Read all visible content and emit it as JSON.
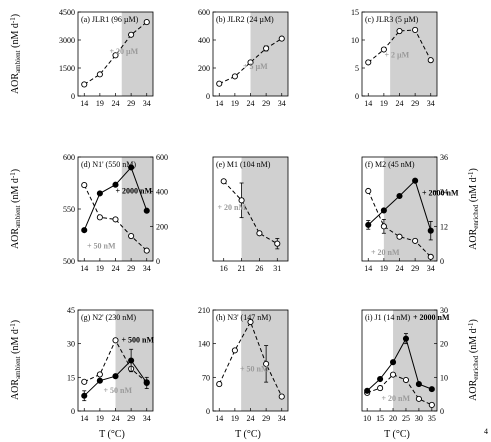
{
  "figure": {
    "x_axis_label": "T (°C)",
    "y_left_label": "AOR",
    "y_left_sub": "ambient",
    "y_right_label": "AOR",
    "y_right_sub": "enriched",
    "y_unit": "(nM d",
    "y_unit_sup": "-1",
    "y_unit_close": ")",
    "corner_mark": "4"
  },
  "colors": {
    "shade": "#d0d0d0",
    "line": "#000000",
    "gray_text": "#9a9a9a",
    "black_text": "#000000"
  },
  "chart_data": [
    {
      "type": "line",
      "title": "(a) JLR1 (96 µM)",
      "xlim": [
        12,
        36
      ],
      "xticks": [
        14,
        19,
        24,
        29,
        34
      ],
      "shade_from": 26,
      "ylim": [
        0,
        4500
      ],
      "yticks": [
        0,
        1500,
        3000,
        4500
      ],
      "series": [
        {
          "axis": "left",
          "style": "dashed",
          "marker": "open",
          "annotation": "+ 20 µM",
          "annotation_color": "#9a9a9a",
          "x": [
            14,
            19,
            24,
            29,
            34
          ],
          "y": [
            620,
            1160,
            2180,
            3280,
            3960
          ],
          "err": [
            0,
            0,
            0,
            0,
            0
          ]
        }
      ]
    },
    {
      "type": "line",
      "title": "(b) JLR2 (24 µM)",
      "xlim": [
        12,
        36
      ],
      "xticks": [
        14,
        19,
        24,
        29,
        34
      ],
      "shade_from": 24,
      "ylim": [
        0,
        600
      ],
      "yticks": [
        0,
        200,
        400,
        600
      ],
      "series": [
        {
          "axis": "left",
          "style": "dashed",
          "marker": "open",
          "annotation": "+ 5 µM",
          "annotation_color": "#9a9a9a",
          "x": [
            14,
            19,
            24,
            29,
            34
          ],
          "y": [
            88,
            140,
            240,
            340,
            410
          ],
          "err": [
            0,
            0,
            0,
            18,
            0
          ]
        }
      ]
    },
    {
      "type": "line",
      "title": "(c) JLR3 (5 µM)",
      "xlim": [
        12,
        36
      ],
      "xticks": [
        14,
        19,
        24,
        29,
        34
      ],
      "shade_from": 21,
      "ylim": [
        0,
        15
      ],
      "yticks": [
        0,
        5,
        10,
        15
      ],
      "series": [
        {
          "axis": "left",
          "style": "dashed",
          "marker": "open",
          "annotation": "+ 2 µM",
          "annotation_color": "#9a9a9a",
          "x": [
            14,
            19,
            24,
            29,
            34
          ],
          "y": [
            6.0,
            8.3,
            11.6,
            11.8,
            6.4
          ],
          "err": [
            0,
            0,
            0,
            0,
            0
          ]
        }
      ]
    },
    {
      "type": "line",
      "title": "(d) N1' (550 nM)",
      "xlim": [
        12,
        36
      ],
      "xticks": [
        14,
        19,
        24,
        29,
        34
      ],
      "shade_from": 26,
      "ylim": [
        500,
        600
      ],
      "yticks": [
        500,
        550,
        600
      ],
      "y2lim": [
        0,
        600
      ],
      "y2ticks": [
        0,
        200,
        400,
        600
      ],
      "series": [
        {
          "axis": "left",
          "style": "dashed",
          "marker": "open",
          "annotation": "+ 50 nM",
          "annotation_color": "#9a9a9a",
          "x": [
            14,
            19,
            24,
            29,
            34
          ],
          "y": [
            573,
            542,
            540,
            524,
            510
          ],
          "err": [
            0,
            0,
            0,
            0,
            0
          ]
        },
        {
          "axis": "right",
          "style": "solid",
          "marker": "filled",
          "annotation": "+ 2000 nM",
          "annotation_color": "#000000",
          "x": [
            14,
            19,
            24,
            29,
            34
          ],
          "y": [
            178,
            390,
            440,
            540,
            290
          ],
          "err": [
            0,
            0,
            0,
            0,
            0
          ]
        }
      ]
    },
    {
      "type": "line",
      "title": "(e) M1 (104 nM)",
      "xlim": [
        13,
        34
      ],
      "xticks": [
        16,
        21,
        26,
        31
      ],
      "shade_from": 21,
      "ylim": [
        0,
        600
      ],
      "yticks": [],
      "series": [
        {
          "axis": "left",
          "style": "dashed",
          "marker": "open",
          "annotation": "+ 20 nM",
          "annotation_color": "#9a9a9a",
          "x": [
            16,
            21,
            26,
            31
          ],
          "y": [
            460,
            350,
            160,
            100
          ],
          "err": [
            0,
            100,
            0,
            30
          ]
        }
      ]
    },
    {
      "type": "line",
      "title": "(f) M2 (45 nM)",
      "xlim": [
        12,
        36
      ],
      "xticks": [
        14,
        19,
        24,
        29,
        34
      ],
      "shade_from": 19,
      "ylim": [
        0,
        15
      ],
      "yticks": [],
      "y2lim": [
        0,
        36
      ],
      "y2ticks": [
        0,
        12,
        24,
        36
      ],
      "series": [
        {
          "axis": "left",
          "style": "dashed",
          "marker": "open",
          "annotation": "+ 20 nM",
          "annotation_color": "#9a9a9a",
          "x": [
            14,
            19,
            24,
            29,
            34
          ],
          "y": [
            10.1,
            5.0,
            3.5,
            2.9,
            0.6
          ],
          "err": [
            0,
            1.0,
            0,
            0,
            0
          ]
        },
        {
          "axis": "right",
          "style": "solid",
          "marker": "filled",
          "annotation": "+ 2000 nM",
          "annotation_color": "#000000",
          "x": [
            14,
            19,
            24,
            29,
            34
          ],
          "y": [
            12.5,
            17.5,
            22.5,
            27.8,
            10.5
          ],
          "err": [
            1.5,
            0,
            0,
            0,
            3.2
          ]
        }
      ]
    },
    {
      "type": "line",
      "title": "(g) N2' (230 nM)",
      "xlim": [
        12,
        36
      ],
      "xticks": [
        14,
        19,
        24,
        29,
        34
      ],
      "shade_from": 24,
      "ylim": [
        0,
        45
      ],
      "yticks": [
        0,
        15,
        30,
        45
      ],
      "y2lim": [
        0,
        45
      ],
      "y2ticks": [],
      "series": [
        {
          "axis": "left",
          "style": "dashed",
          "marker": "open",
          "annotation": "+ 50 nM",
          "annotation_color": "#9a9a9a",
          "x": [
            14,
            19,
            24,
            29,
            34
          ],
          "y": [
            13.0,
            16.3,
            31.5,
            18.8,
            12.8
          ],
          "err": [
            0,
            0,
            0,
            0,
            0
          ]
        },
        {
          "axis": "right",
          "style": "solid",
          "marker": "filled",
          "annotation": "+ 500 nM",
          "annotation_color": "#000000",
          "x": [
            14,
            19,
            24,
            29,
            34
          ],
          "y": [
            6.8,
            13.5,
            15.5,
            22.5,
            12.5
          ],
          "err": [
            2.2,
            0,
            0,
            5.0,
            2.5
          ]
        }
      ]
    },
    {
      "type": "line",
      "title": "(h) N3' (147 nM)",
      "xlim": [
        12,
        36
      ],
      "xticks": [
        14,
        19,
        24,
        29,
        34
      ],
      "shade_from": 21,
      "ylim": [
        0,
        210
      ],
      "yticks": [
        0,
        70,
        140,
        210
      ],
      "series": [
        {
          "axis": "left",
          "style": "dashed",
          "marker": "open",
          "annotation": "+ 50 nM",
          "annotation_color": "#9a9a9a",
          "x": [
            14,
            19,
            24,
            29,
            34
          ],
          "y": [
            56,
            126,
            185,
            98,
            30
          ],
          "err": [
            0,
            0,
            0,
            38,
            0
          ]
        }
      ]
    },
    {
      "type": "line",
      "title": "(i) J1 (14 nM)",
      "xlim": [
        8,
        37
      ],
      "xticks": [
        10,
        15,
        20,
        25,
        30,
        35
      ],
      "shade_from": 20,
      "ylim": [
        0,
        15
      ],
      "yticks": [],
      "y2lim": [
        0,
        30
      ],
      "y2ticks": [
        0,
        10,
        20,
        30
      ],
      "series": [
        {
          "axis": "left",
          "style": "dashed",
          "marker": "open",
          "annotation": "+ 20 nM",
          "annotation_color": "#9a9a9a",
          "x": [
            10,
            15,
            20,
            25,
            30,
            35
          ],
          "y": [
            2.7,
            3.4,
            5.4,
            4.6,
            1.8,
            0.9
          ],
          "err": [
            0,
            0,
            0,
            0,
            0,
            0
          ]
        },
        {
          "axis": "right",
          "style": "solid",
          "marker": "filled",
          "annotation": "+ 2000 nM",
          "annotation_color": "#000000",
          "x": [
            10,
            15,
            20,
            25,
            30,
            35
          ],
          "y": [
            6.0,
            9.5,
            14.5,
            21.5,
            8.0,
            6.5
          ],
          "err": [
            0,
            0,
            0,
            1.5,
            0,
            0
          ]
        }
      ]
    }
  ]
}
